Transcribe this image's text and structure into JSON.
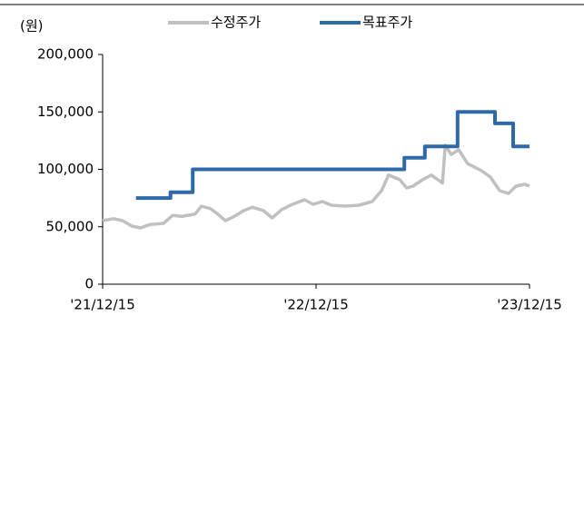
{
  "chart_data": {
    "type": "line",
    "y_unit_label": "(원)",
    "ylim": [
      0,
      200000
    ],
    "yticks": [
      {
        "value": 0,
        "label": "0"
      },
      {
        "value": 50000,
        "label": "50,000"
      },
      {
        "value": 100000,
        "label": "100,000"
      },
      {
        "value": 150000,
        "label": "150,000"
      },
      {
        "value": 200000,
        "label": "200,000"
      }
    ],
    "xlim": [
      "2021-12-15",
      "2023-12-15"
    ],
    "xticks": [
      {
        "value": "2021-12-15",
        "label": "'21/12/15"
      },
      {
        "value": "2022-12-15",
        "label": "'22/12/15"
      },
      {
        "value": "2023-12-15",
        "label": "'23/12/15"
      }
    ],
    "series": [
      {
        "name": "수정주가",
        "color": "#c0c0c0",
        "x": [
          "2021-12-15",
          "2022-01-03",
          "2022-01-18",
          "2022-02-03",
          "2022-02-18",
          "2022-03-06",
          "2022-03-29",
          "2022-04-14",
          "2022-04-29",
          "2022-05-22",
          "2022-06-02",
          "2022-06-18",
          "2022-06-30",
          "2022-07-13",
          "2022-07-28",
          "2022-08-13",
          "2022-08-28",
          "2022-09-16",
          "2022-10-01",
          "2022-10-17",
          "2022-11-01",
          "2022-11-25",
          "2022-12-10",
          "2022-12-26",
          "2023-01-10",
          "2023-02-03",
          "2023-02-26",
          "2023-03-21",
          "2023-04-06",
          "2023-04-18",
          "2023-05-07",
          "2023-05-19",
          "2023-05-30",
          "2023-06-15",
          "2023-06-30",
          "2023-07-16",
          "2023-07-19",
          "2023-07-24",
          "2023-08-03",
          "2023-08-16",
          "2023-08-31",
          "2023-09-24",
          "2023-10-09",
          "2023-10-25",
          "2023-11-09",
          "2023-11-22",
          "2023-12-07",
          "2023-12-15"
        ],
        "values": [
          55300,
          57000,
          55300,
          50600,
          49000,
          52000,
          53000,
          60000,
          59000,
          61000,
          68000,
          65600,
          61000,
          55300,
          59000,
          64000,
          67000,
          64000,
          57700,
          64800,
          68800,
          73500,
          69600,
          71900,
          68800,
          68000,
          68800,
          71900,
          81400,
          95000,
          91000,
          83800,
          85400,
          91000,
          95000,
          89300,
          88000,
          121000,
          113000,
          117000,
          105000,
          98800,
          93300,
          81400,
          79000,
          85400,
          87000,
          85400
        ]
      },
      {
        "name": "목표주가",
        "color": "#2e6aa8",
        "step": true,
        "x": [
          "2022-02-10",
          "2022-04-10",
          "2022-05-18",
          "2023-05-15",
          "2023-06-19",
          "2023-08-14",
          "2023-10-17",
          "2023-11-17",
          "2023-12-15"
        ],
        "values": [
          75000,
          80000,
          100000,
          110000,
          120000,
          150000,
          140000,
          120000,
          120000
        ]
      }
    ]
  }
}
